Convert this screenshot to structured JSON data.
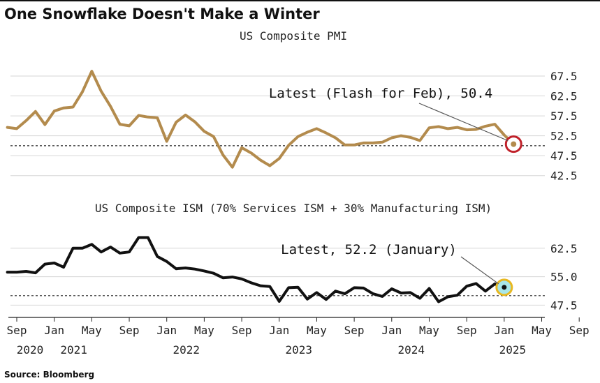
{
  "figure": {
    "title": "One Snowflake Doesn't Make a Winter",
    "source": "Source: Bloomberg"
  },
  "x_axis": {
    "month_ticks": [
      "Sep",
      "Jan",
      "May",
      "Sep",
      "Jan",
      "May",
      "Sep",
      "Jan",
      "May",
      "Sep",
      "Jan",
      "May",
      "Sep",
      "Jan",
      "May",
      "Sep",
      "Jan",
      "May"
    ],
    "year_ticks": [
      "2020",
      "2021",
      "2022",
      "2023",
      "2024",
      "2025"
    ]
  },
  "chart_data": [
    {
      "type": "line",
      "title": "US Composite PMI",
      "color": "#b38b4d",
      "highlight_color": "#c0212a",
      "ylim": [
        40,
        71
      ],
      "yticks": [
        42.5,
        47.5,
        52.5,
        57.5,
        62.5,
        67.5
      ],
      "ytick_labels": [
        "42.5",
        "47.5",
        "52.5",
        "57.5",
        "62.5",
        "67.5"
      ],
      "reference_line": 50,
      "grid": true,
      "annotation": "Latest (Flash for Feb), 50.4",
      "x": [
        "2020-08",
        "2020-09",
        "2020-10",
        "2020-11",
        "2020-12",
        "2021-01",
        "2021-02",
        "2021-03",
        "2021-04",
        "2021-05",
        "2021-06",
        "2021-07",
        "2021-08",
        "2021-09",
        "2021-10",
        "2021-11",
        "2021-12",
        "2022-01",
        "2022-02",
        "2022-03",
        "2022-04",
        "2022-05",
        "2022-06",
        "2022-07",
        "2022-08",
        "2022-09",
        "2022-10",
        "2022-11",
        "2022-12",
        "2023-01",
        "2023-02",
        "2023-03",
        "2023-04",
        "2023-05",
        "2023-06",
        "2023-07",
        "2023-08",
        "2023-09",
        "2023-10",
        "2023-11",
        "2023-12",
        "2024-01",
        "2024-02",
        "2024-03",
        "2024-04",
        "2024-05",
        "2024-06",
        "2024-07",
        "2024-08",
        "2024-09",
        "2024-10",
        "2024-11",
        "2024-12",
        "2025-01",
        "2025-02"
      ],
      "values": [
        54.6,
        54.3,
        56.3,
        58.6,
        55.3,
        58.7,
        59.5,
        59.7,
        63.5,
        68.7,
        63.7,
        59.9,
        55.4,
        55.0,
        57.6,
        57.2,
        57.0,
        51.1,
        55.9,
        57.7,
        56.0,
        53.6,
        52.3,
        47.7,
        44.6,
        49.5,
        48.2,
        46.4,
        45.0,
        46.8,
        50.1,
        52.3,
        53.4,
        54.3,
        53.2,
        52.0,
        50.2,
        50.2,
        50.7,
        50.7,
        50.9,
        52.0,
        52.5,
        52.1,
        51.3,
        54.5,
        54.8,
        54.3,
        54.6,
        54.0,
        54.1,
        54.9,
        55.4,
        52.7,
        50.4
      ]
    },
    {
      "type": "line",
      "title": "US Composite ISM (70% Services ISM + 30% Manufacturing ISM)",
      "color": "#111111",
      "highlight_color": "#e8b820",
      "ylim": [
        45,
        66.5
      ],
      "yticks": [
        47.5,
        55.0,
        62.5
      ],
      "ytick_labels": [
        "47.5",
        "55.0",
        "62.5"
      ],
      "reference_line": 50,
      "grid": true,
      "annotation": "Latest, 52.2 (January)",
      "x": [
        "2020-08",
        "2020-09",
        "2020-10",
        "2020-11",
        "2020-12",
        "2021-01",
        "2021-02",
        "2021-03",
        "2021-04",
        "2021-05",
        "2021-06",
        "2021-07",
        "2021-08",
        "2021-09",
        "2021-10",
        "2021-11",
        "2021-12",
        "2022-01",
        "2022-02",
        "2022-03",
        "2022-04",
        "2022-05",
        "2022-06",
        "2022-07",
        "2022-08",
        "2022-09",
        "2022-10",
        "2022-11",
        "2022-12",
        "2023-01",
        "2023-02",
        "2023-03",
        "2023-04",
        "2023-05",
        "2023-06",
        "2023-07",
        "2023-08",
        "2023-09",
        "2023-10",
        "2023-11",
        "2023-12",
        "2024-01",
        "2024-02",
        "2024-03",
        "2024-04",
        "2024-05",
        "2024-06",
        "2024-07",
        "2024-08",
        "2024-09",
        "2024-10",
        "2024-11",
        "2024-12",
        "2025-01"
      ],
      "values": [
        56.2,
        56.2,
        56.4,
        56.0,
        58.3,
        58.6,
        57.5,
        62.5,
        62.5,
        63.5,
        61.5,
        62.8,
        61.2,
        61.5,
        65.3,
        65.3,
        60.3,
        59.0,
        57.1,
        57.3,
        57.0,
        56.5,
        55.9,
        54.7,
        54.9,
        54.4,
        53.4,
        52.6,
        52.4,
        48.5,
        52.1,
        52.2,
        49.1,
        50.8,
        49.0,
        51.2,
        50.5,
        52.1,
        52.0,
        50.5,
        49.8,
        51.8,
        50.7,
        50.8,
        49.3,
        51.9,
        48.4,
        49.7,
        50.1,
        52.5,
        53.2,
        51.2,
        53.1,
        52.2
      ]
    }
  ]
}
